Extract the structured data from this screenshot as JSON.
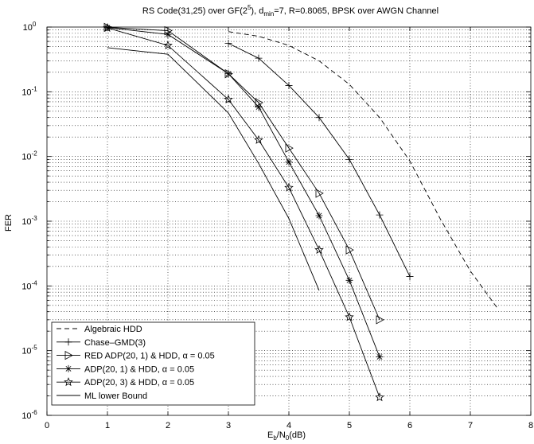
{
  "chart_data": {
    "type": "line",
    "title": {
      "prefix": "RS Code(31,25) over GF(2",
      "sup": "5",
      "mid": "), d",
      "sub": "min",
      "suffix": "=7, R=0.8065, BPSK over AWGN Channel"
    },
    "xlabel": {
      "main": "E",
      "sub1": "b",
      "mid": "/N",
      "sub2": "0",
      "suffix": "(dB)"
    },
    "ylabel": "FER",
    "x_scale": "linear",
    "y_scale": "log",
    "xlim": [
      0,
      8
    ],
    "ylim": [
      1e-06,
      1
    ],
    "x_ticks": [
      "0",
      "1",
      "2",
      "3",
      "4",
      "5",
      "6",
      "7",
      "8"
    ],
    "y_ticks": [
      {
        "value": 1.0,
        "base": "10",
        "exp": "0"
      },
      {
        "value": 0.1,
        "base": "10",
        "exp": "-1"
      },
      {
        "value": 0.01,
        "base": "10",
        "exp": "-2"
      },
      {
        "value": 0.001,
        "base": "10",
        "exp": "-3"
      },
      {
        "value": 0.0001,
        "base": "10",
        "exp": "-4"
      },
      {
        "value": 1e-05,
        "base": "10",
        "exp": "-5"
      },
      {
        "value": 1e-06,
        "base": "10",
        "exp": "-6"
      }
    ],
    "grid": true,
    "legend_position": "bottom-left",
    "series": [
      {
        "name": "Algebraic HDD",
        "line_style": "dashed",
        "marker": "none",
        "x": [
          3.0,
          3.5,
          4.0,
          4.5,
          5.0,
          5.5,
          6.0,
          6.5,
          7.0,
          7.45
        ],
        "y": [
          0.85,
          0.72,
          0.52,
          0.3,
          0.13,
          0.04,
          0.0085,
          0.0011,
          0.00017,
          4.5e-05
        ]
      },
      {
        "name": "Chase–GMD(3)",
        "line_style": "solid",
        "marker": "plus",
        "x": [
          3.0,
          3.5,
          4.0,
          4.5,
          5.0,
          5.5,
          6.0
        ],
        "y": [
          0.56,
          0.33,
          0.125,
          0.04,
          0.009,
          0.00125,
          0.00014
        ]
      },
      {
        "name": "RED ADP(20, 1) & HDD, α = 0.05",
        "line_style": "solid",
        "marker": "triangle-right",
        "x": [
          1.0,
          2.0,
          3.0,
          3.5,
          4.0,
          4.5,
          5.0,
          5.5
        ],
        "y": [
          0.99,
          0.88,
          0.19,
          0.068,
          0.0135,
          0.0027,
          0.00036,
          3e-05
        ]
      },
      {
        "name": "ADP(20, 1) & HDD, α = 0.05",
        "line_style": "solid",
        "marker": "asterisk",
        "x": [
          1.0,
          2.0,
          3.0,
          3.5,
          4.0,
          4.5,
          5.0,
          5.5
        ],
        "y": [
          0.98,
          0.77,
          0.19,
          0.058,
          0.0082,
          0.00122,
          0.000122,
          8e-06
        ]
      },
      {
        "name": "ADP(20, 3) & HDD, α = 0.05",
        "line_style": "solid",
        "marker": "star",
        "x": [
          1.0,
          2.0,
          3.0,
          3.5,
          4.0,
          4.5,
          5.0,
          5.5
        ],
        "y": [
          0.97,
          0.52,
          0.076,
          0.018,
          0.0033,
          0.00036,
          3.3e-05,
          1.9e-06
        ]
      },
      {
        "name": "ML lower Bound",
        "line_style": "solid",
        "marker": "none",
        "x": [
          1.0,
          2.0,
          3.0,
          3.5,
          4.0,
          4.5
        ],
        "y": [
          0.48,
          0.38,
          0.047,
          0.0078,
          0.0011,
          8.5e-05
        ]
      }
    ]
  }
}
